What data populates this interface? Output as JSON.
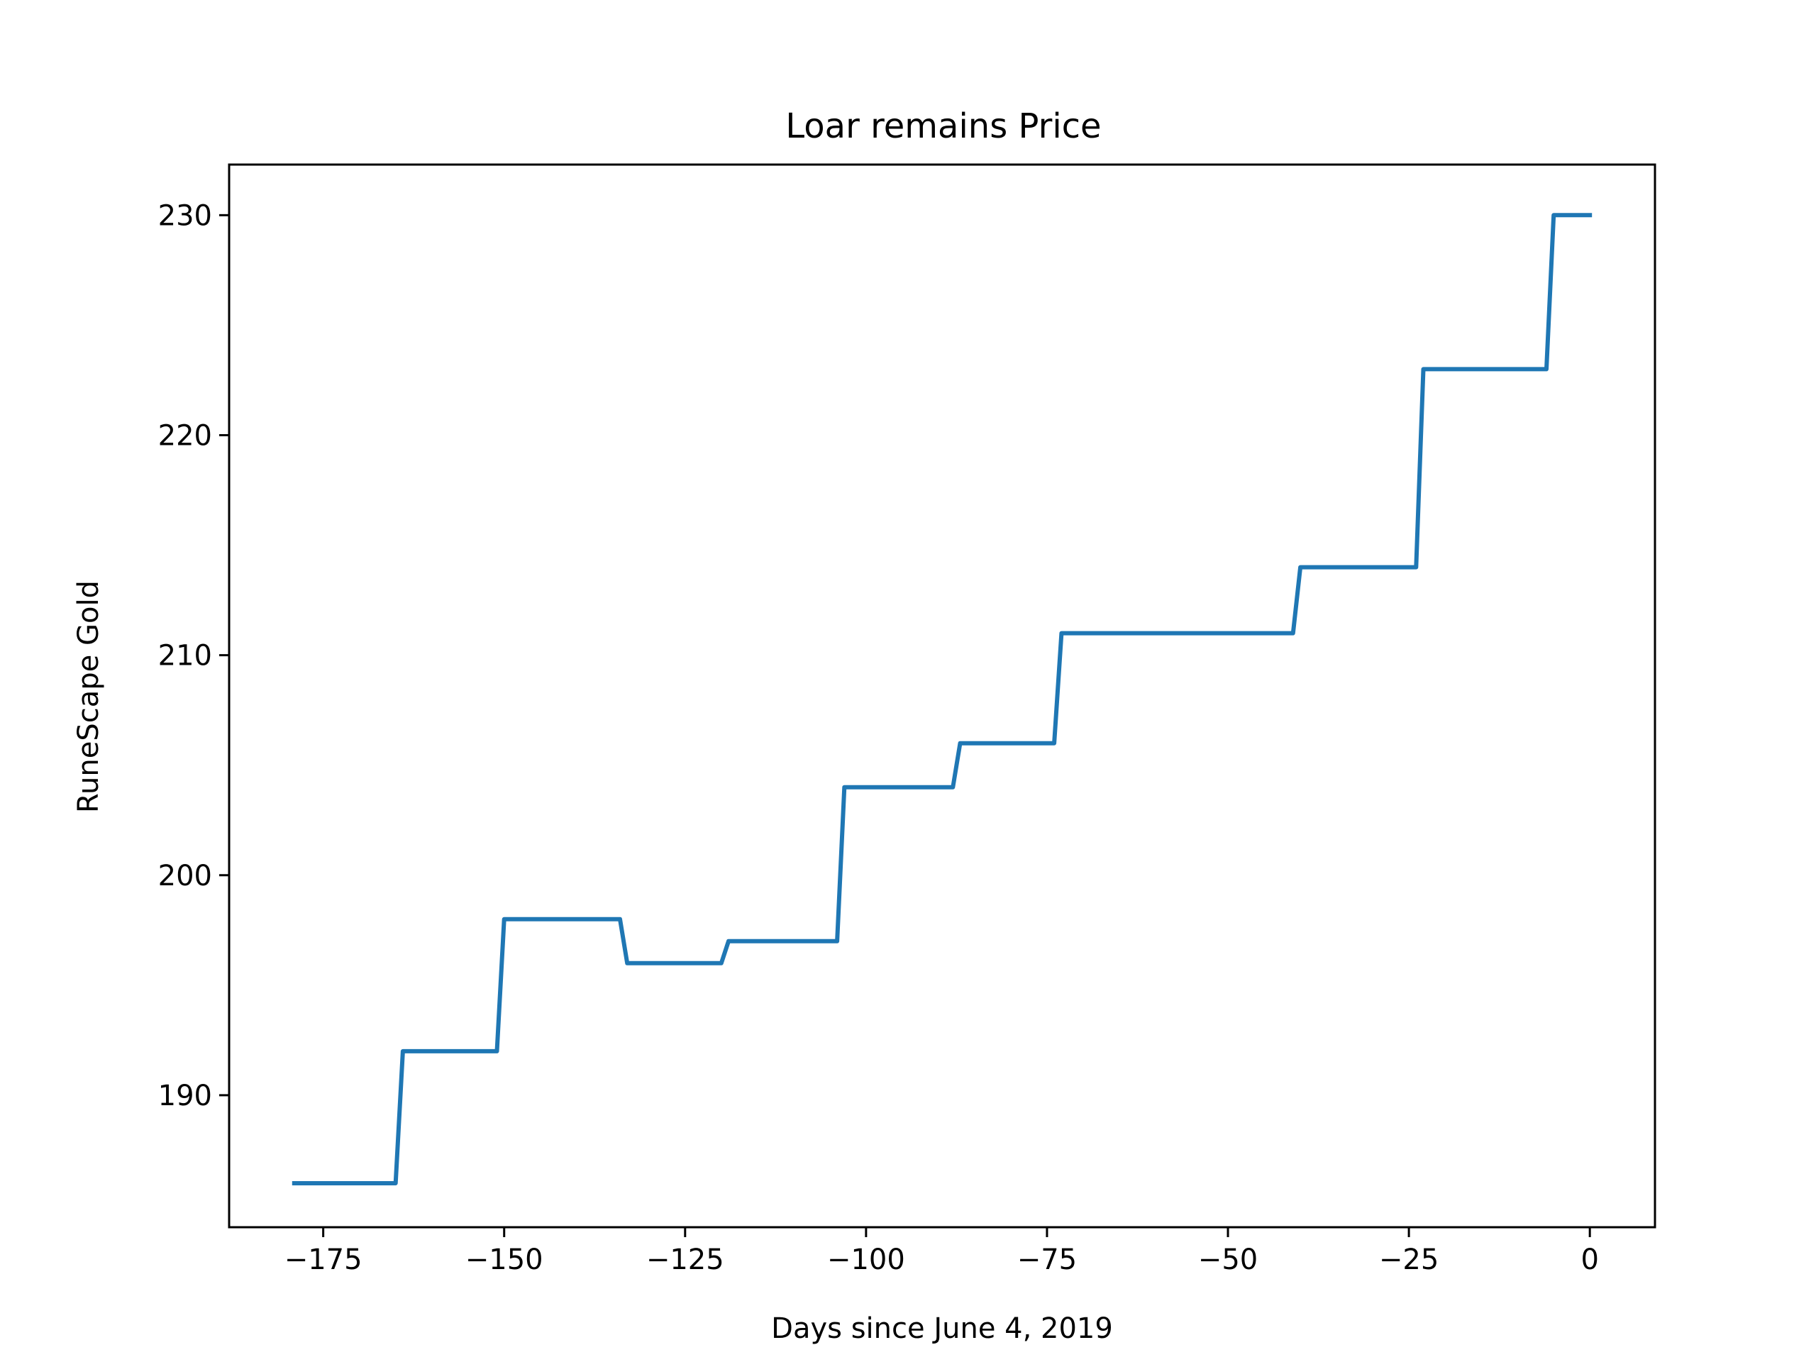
{
  "chart_data": {
    "type": "line",
    "title": "Loar remains Price",
    "xlabel": "Days since June 4, 2019",
    "ylabel": "RuneScape Gold",
    "xlim": [
      -188,
      9
    ],
    "ylim": [
      184,
      232.3
    ],
    "xticks": [
      -175,
      -150,
      -125,
      -100,
      -75,
      -50,
      -25,
      0
    ],
    "xtick_labels": [
      "−175",
      "−150",
      "−125",
      "−100",
      "−75",
      "−50",
      "−25",
      "0"
    ],
    "yticks": [
      190,
      200,
      210,
      220,
      230
    ],
    "ytick_labels": [
      "190",
      "200",
      "210",
      "220",
      "230"
    ],
    "grid": false,
    "series": [
      {
        "color": "#1f77b4",
        "x": [
          -179,
          -165,
          -164,
          -151,
          -150,
          -134,
          -133,
          -120,
          -119,
          -104,
          -103,
          -88,
          -87,
          -74,
          -73,
          -41,
          -40,
          -24,
          -23,
          -6,
          -5,
          0
        ],
        "y": [
          186,
          186,
          192,
          192,
          198,
          198,
          196,
          196,
          197,
          197,
          204,
          204,
          206,
          206,
          211,
          211,
          214,
          214,
          223,
          223,
          230,
          230
        ]
      }
    ]
  }
}
